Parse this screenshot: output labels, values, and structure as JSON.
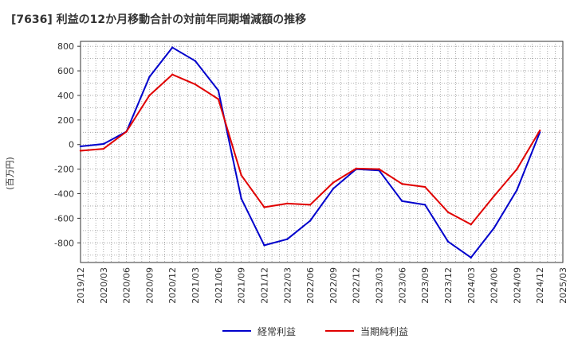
{
  "chart_data": {
    "type": "line",
    "title": "[7636]  利益の12か月移動合計の対前年同期増減額の推移",
    "ylabel": "(百万円)",
    "xlabel": "",
    "ylim": [
      -960,
      840
    ],
    "yticks": [
      -800,
      -600,
      -400,
      -200,
      0,
      200,
      400,
      600,
      800
    ],
    "categories": [
      "2019/12",
      "2020/03",
      "2020/06",
      "2020/09",
      "2020/12",
      "2021/03",
      "2021/06",
      "2021/09",
      "2021/12",
      "2022/03",
      "2022/06",
      "2022/09",
      "2022/12",
      "2023/03",
      "2023/06",
      "2023/09",
      "2023/12",
      "2024/03",
      "2024/06",
      "2024/09",
      "2024/12",
      "2025/03"
    ],
    "series": [
      {
        "name": "経常利益",
        "color": "#0000cc",
        "values": [
          -15,
          5,
          105,
          550,
          790,
          680,
          440,
          -440,
          -820,
          -770,
          -620,
          -360,
          -200,
          -210,
          -460,
          -490,
          -790,
          -920,
          -680,
          -370,
          100,
          null
        ]
      },
      {
        "name": "当期純利益",
        "color": "#e00000",
        "values": [
          -50,
          -35,
          105,
          400,
          570,
          490,
          370,
          -250,
          -510,
          -480,
          -490,
          -310,
          -195,
          -200,
          -320,
          -345,
          -550,
          -650,
          -420,
          -200,
          115,
          null
        ]
      }
    ],
    "legend": "bottom",
    "grid": true
  }
}
